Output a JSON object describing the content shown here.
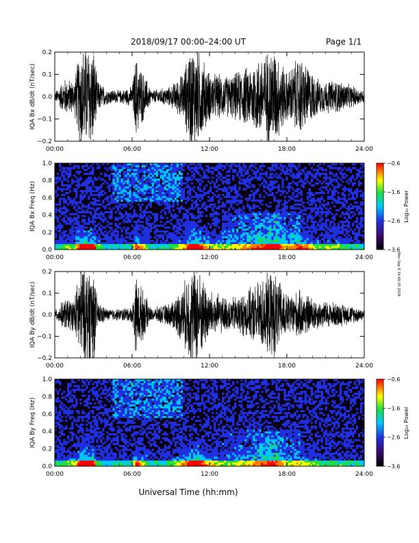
{
  "header": {
    "date_range": "2018/09/17  00:00–24:00 UT",
    "page": "Page 1/1"
  },
  "footer": {
    "xlabel": "Universal Time (hh:mm)"
  },
  "side_note": "Mon Sep 8 14:40:35 2018",
  "colors": {
    "trace": "#000000",
    "colorbar": [
      "#000000",
      "#3a0a6a",
      "#2030e0",
      "#00c8ff",
      "#20e040",
      "#ffff00",
      "#ff8000",
      "#ff0000"
    ]
  },
  "chart_data": [
    {
      "type": "line",
      "ylabel": "IQA Bx dB/dt (nT/sec)",
      "ylim": [
        -0.2,
        0.2
      ],
      "y_ticks": [
        "0.2",
        "0.1",
        "0.0",
        "−0.1",
        "−0.2"
      ],
      "x_ticks": [
        "00:00",
        "06:00",
        "12:00",
        "18:00",
        "24:00"
      ],
      "xlim": [
        0,
        24
      ],
      "x_unit": "hours UT",
      "activity_profile": {
        "hours": [
          0,
          0.8,
          1.5,
          2.0,
          2.5,
          3.0,
          3.3,
          4.0,
          5.0,
          6.0,
          6.3,
          7.5,
          9.0,
          10.0,
          10.5,
          11.0,
          12.0,
          13.5,
          15.0,
          16.0,
          17.0,
          18.0,
          19.0,
          20.5,
          22.0,
          24.0
        ],
        "amplitude": [
          0.02,
          0.09,
          0.08,
          0.25,
          0.25,
          0.25,
          0.08,
          0.04,
          0.03,
          0.05,
          0.2,
          0.03,
          0.05,
          0.12,
          0.25,
          0.25,
          0.12,
          0.1,
          0.15,
          0.2,
          0.25,
          0.12,
          0.2,
          0.08,
          0.08,
          0.03
        ]
      }
    },
    {
      "type": "heatmap",
      "ylabel": "IQA Bx Freq (Hz)",
      "ylim": [
        0.0,
        1.0
      ],
      "y_ticks": [
        "1.0",
        "0.8",
        "0.6",
        "0.4",
        "0.2",
        "0.0"
      ],
      "x_ticks": [
        "00:00",
        "06:00",
        "12:00",
        "18:00",
        "24:00"
      ],
      "xlim": [
        0,
        24
      ],
      "colorbar": {
        "label": "Log₁₀ Power",
        "ticks": [
          "−0.6",
          "−1.6",
          "−2.6",
          "−3.6"
        ],
        "range": [
          -3.6,
          -0.6
        ]
      }
    },
    {
      "type": "line",
      "ylabel": "IQA By dB/dt (nT/sec)",
      "ylim": [
        -0.2,
        0.2
      ],
      "y_ticks": [
        "0.2",
        "0.1",
        "0.0",
        "−0.1",
        "−0.2"
      ],
      "x_ticks": [
        "00:00",
        "06:00",
        "12:00",
        "18:00",
        "24:00"
      ],
      "xlim": [
        0,
        24
      ],
      "x_unit": "hours UT",
      "activity_profile": {
        "hours": [
          0,
          0.8,
          1.5,
          2.0,
          2.5,
          3.0,
          3.3,
          4.0,
          5.0,
          6.0,
          6.3,
          7.5,
          9.0,
          10.0,
          10.5,
          11.0,
          12.0,
          13.5,
          15.0,
          16.0,
          17.0,
          18.0,
          19.0,
          20.5,
          22.0,
          24.0
        ],
        "amplitude": [
          0.02,
          0.08,
          0.08,
          0.25,
          0.25,
          0.25,
          0.07,
          0.03,
          0.03,
          0.04,
          0.2,
          0.03,
          0.06,
          0.15,
          0.25,
          0.25,
          0.12,
          0.08,
          0.12,
          0.18,
          0.22,
          0.1,
          0.12,
          0.07,
          0.06,
          0.03
        ]
      }
    },
    {
      "type": "heatmap",
      "ylabel": "IQA By Freq (Hz)",
      "ylim": [
        0.0,
        1.0
      ],
      "y_ticks": [
        "1.0",
        "0.8",
        "0.6",
        "0.4",
        "0.2",
        "0.0"
      ],
      "x_ticks": [
        "00:00",
        "06:00",
        "12:00",
        "18:00",
        "24:00"
      ],
      "xlim": [
        0,
        24
      ],
      "colorbar": {
        "label": "Log₁₀ Power",
        "ticks": [
          "−0.6",
          "−1.6",
          "−2.6",
          "−3.6"
        ],
        "range": [
          -3.6,
          -0.6
        ]
      }
    }
  ]
}
